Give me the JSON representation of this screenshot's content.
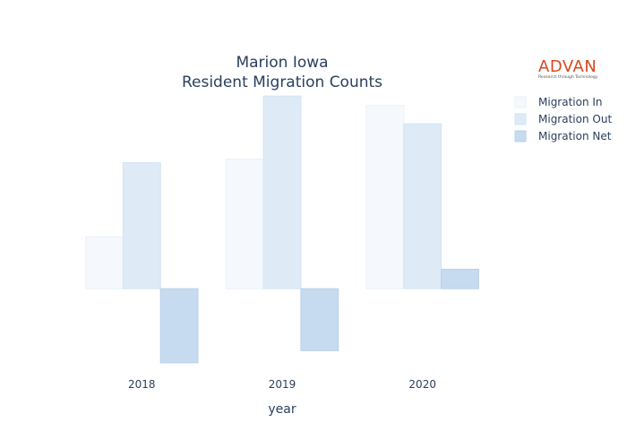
{
  "logo": {
    "brand": "ADVAN",
    "tagline": "Research through Technology"
  },
  "chart_data": {
    "type": "bar",
    "title": [
      "Marion Iowa",
      "Resident Migration Counts"
    ],
    "xlabel": "year",
    "ylabel": "",
    "categories": [
      "2018",
      "2019",
      "2020"
    ],
    "series": [
      {
        "name": "Migration In",
        "values": [
          56,
          140,
          198
        ],
        "color": "#f5f9fd",
        "stroke": "#eaf1fa"
      },
      {
        "name": "Migration Out",
        "values": [
          136,
          208,
          178
        ],
        "color": "#deebf7",
        "stroke": "#d3e3f4"
      },
      {
        "name": "Migration Net",
        "values": [
          -80,
          -67,
          21
        ],
        "color": "#c6dbef",
        "stroke": "#b8d1ea"
      }
    ],
    "ylim": [
      -85,
      215
    ],
    "grid": false,
    "show_y_ticks": false,
    "legend_position": "top-right"
  }
}
